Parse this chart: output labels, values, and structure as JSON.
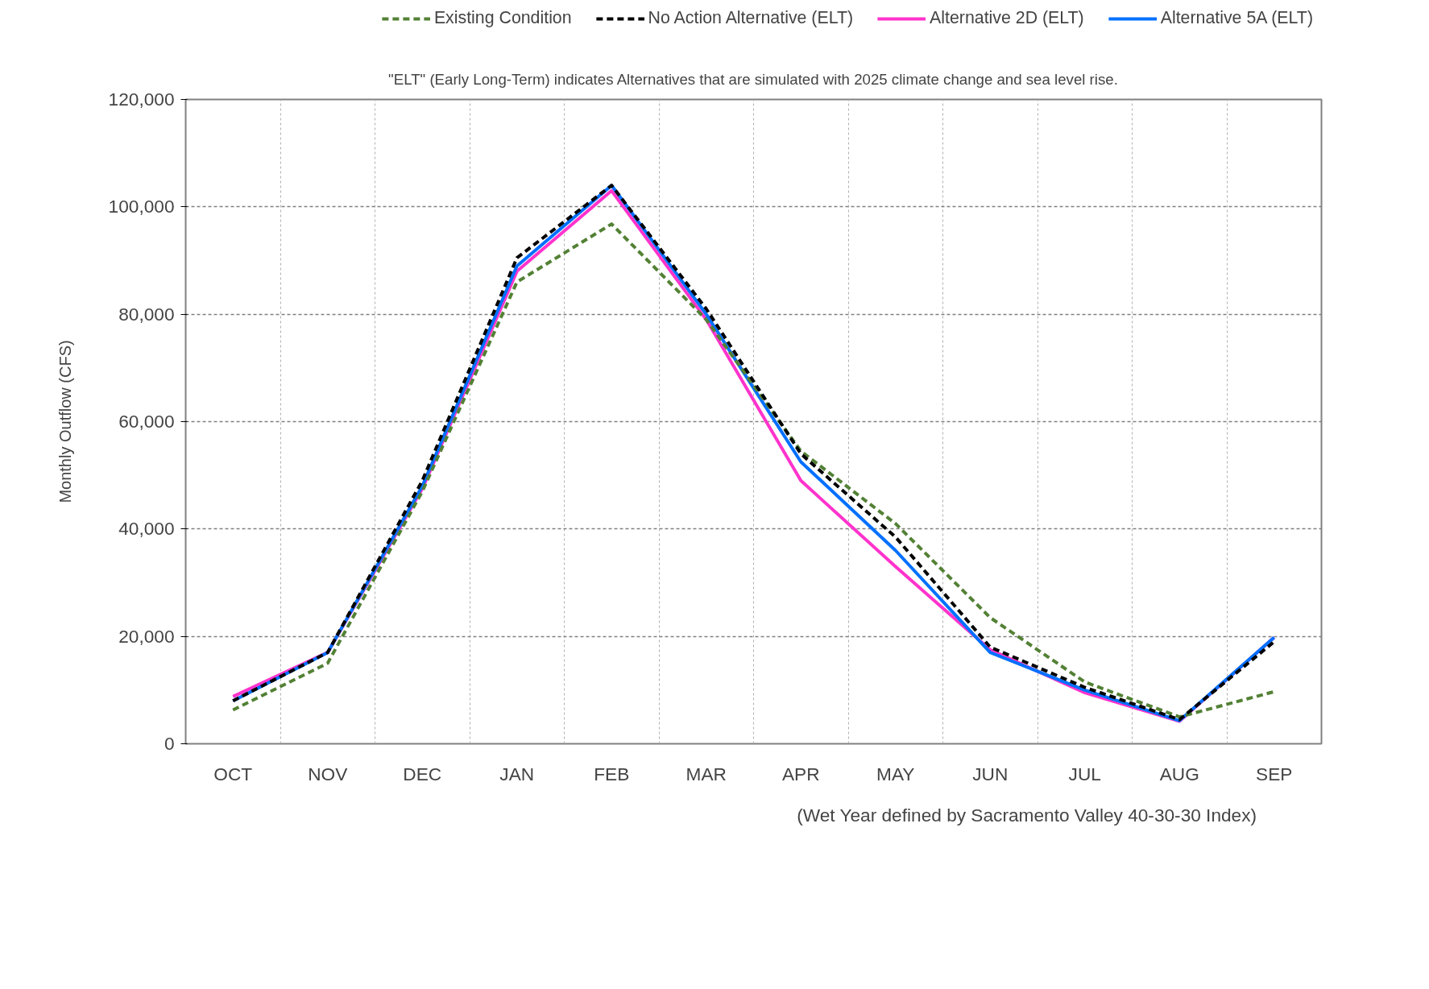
{
  "chart_data": {
    "type": "line",
    "subtitle": "\"ELT\" (Early Long-Term) indicates Alternatives that are simulated with 2025 climate change and sea level rise.",
    "ylabel": "Monthly Outflow (CFS)",
    "annotations": [
      "(Wet Year defined by Sacramento Valley 40-30-30 Index)"
    ],
    "categories": [
      "OCT",
      "NOV",
      "DEC",
      "JAN",
      "FEB",
      "MAR",
      "APR",
      "MAY",
      "JUN",
      "JUL",
      "AUG",
      "SEP"
    ],
    "series": [
      {
        "name": "Existing Condition",
        "color": "#538135",
        "line_style": "dashed",
        "values": [
          6300,
          15000,
          47000,
          86000,
          96800,
          79000,
          54500,
          41000,
          23500,
          11500,
          5000,
          9700
        ]
      },
      {
        "name": "No Action Alternative (ELT)",
        "color": "#000000",
        "line_style": "dashed",
        "values": [
          8000,
          17000,
          49000,
          90500,
          104000,
          81000,
          54000,
          38500,
          18000,
          10500,
          4500,
          19000
        ]
      },
      {
        "name": "Alternative 2D (ELT)",
        "color": "#ff33cc",
        "line_style": "solid",
        "values": [
          8800,
          17000,
          47500,
          88000,
          103000,
          79000,
          49000,
          33000,
          17500,
          9500,
          4200,
          19800
        ]
      },
      {
        "name": "Alternative 5A (ELT)",
        "color": "#0070ff",
        "line_style": "solid",
        "values": [
          8000,
          17000,
          48000,
          89000,
          104000,
          80000,
          52500,
          36000,
          17000,
          10000,
          4300,
          19800
        ]
      }
    ],
    "ylim": [
      0,
      120000
    ],
    "yticks": [
      0,
      {
        "value": 20000,
        "label": "20,000"
      },
      {
        "value": 40000,
        "label": "40,000"
      },
      {
        "value": 60000,
        "label": "60,000"
      },
      {
        "value": 80000,
        "label": "80,000"
      },
      {
        "value": 100000,
        "label": "100,000"
      },
      {
        "value": 120000,
        "label": "120,000"
      }
    ],
    "grid": true,
    "legend": "top"
  }
}
